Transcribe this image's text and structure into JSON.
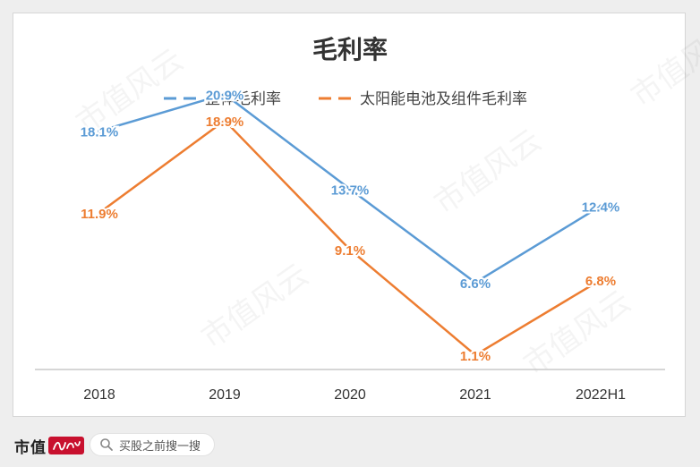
{
  "chart_data": {
    "type": "line",
    "title": "毛利率",
    "categories": [
      "2018",
      "2019",
      "2020",
      "2021",
      "2022H1"
    ],
    "series": [
      {
        "name": "整体毛利率",
        "values": [
          18.1,
          20.9,
          13.7,
          6.6,
          12.4
        ],
        "labels": [
          "18.1%",
          "20.9%",
          "13.7%",
          "6.6%",
          "12.4%"
        ],
        "color": "#5b9bd5"
      },
      {
        "name": "太阳能电池及组件毛利率",
        "values": [
          11.9,
          18.9,
          9.1,
          1.1,
          6.8
        ],
        "labels": [
          "11.9%",
          "18.9%",
          "9.1%",
          "1.1%",
          "6.8%"
        ],
        "color": "#ed7d31"
      }
    ],
    "ylim": [
      0,
      25
    ],
    "grid": false,
    "legend_position": "top-center"
  },
  "watermark": "市值风云",
  "footer": {
    "brand": "市值",
    "brand_mark_icon": "fengyun-logo-icon",
    "search_placeholder": "买股之前搜一搜",
    "search_icon": "search-icon"
  }
}
